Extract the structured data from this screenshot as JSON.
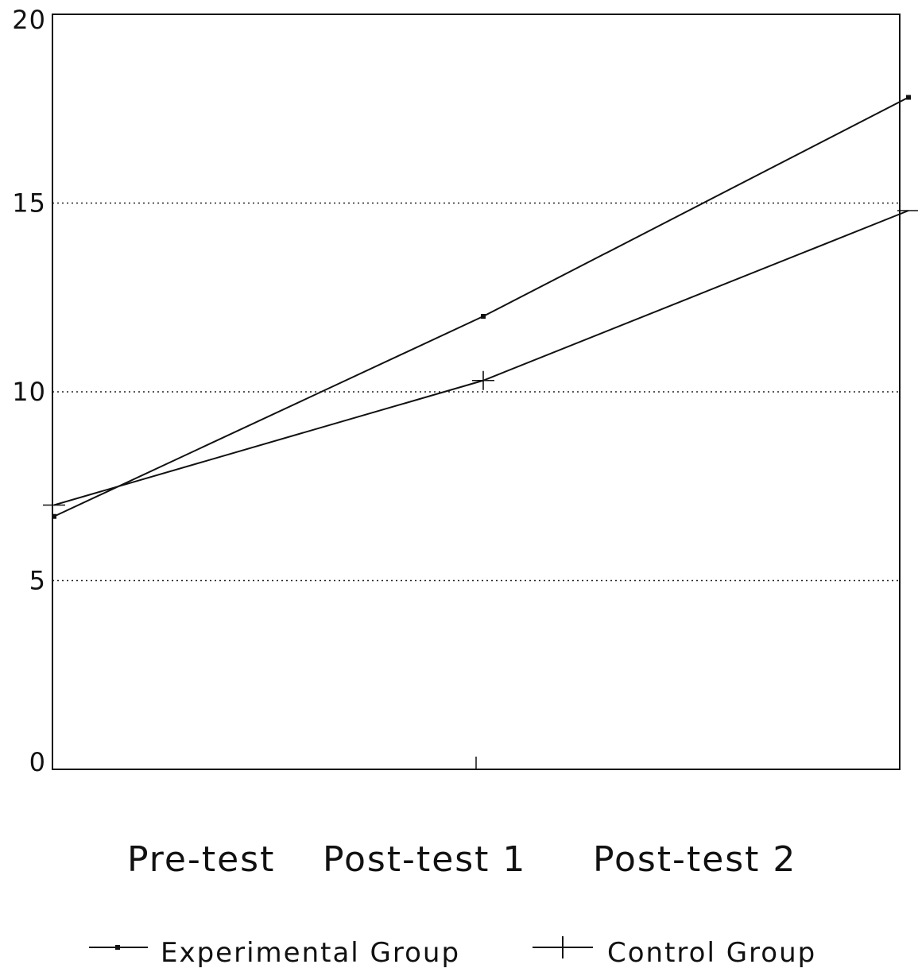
{
  "chart_data": {
    "type": "line",
    "categories": [
      "Pre-test",
      "Post-test 1",
      "Post-test 2"
    ],
    "series": [
      {
        "name": "Experimental Group",
        "values": [
          6.7,
          12.0,
          17.8
        ],
        "marker": "dot",
        "color": "#111111"
      },
      {
        "name": "Control Group",
        "values": [
          7.0,
          10.3,
          14.8
        ],
        "marker": "plus",
        "color": "#111111"
      }
    ],
    "ylim": [
      0,
      20
    ],
    "yticks": [
      "0",
      "5",
      "10",
      "15",
      "20"
    ],
    "gridlines": [
      5,
      10,
      15
    ],
    "grid_style": "dotted",
    "legend_position": "bottom"
  }
}
